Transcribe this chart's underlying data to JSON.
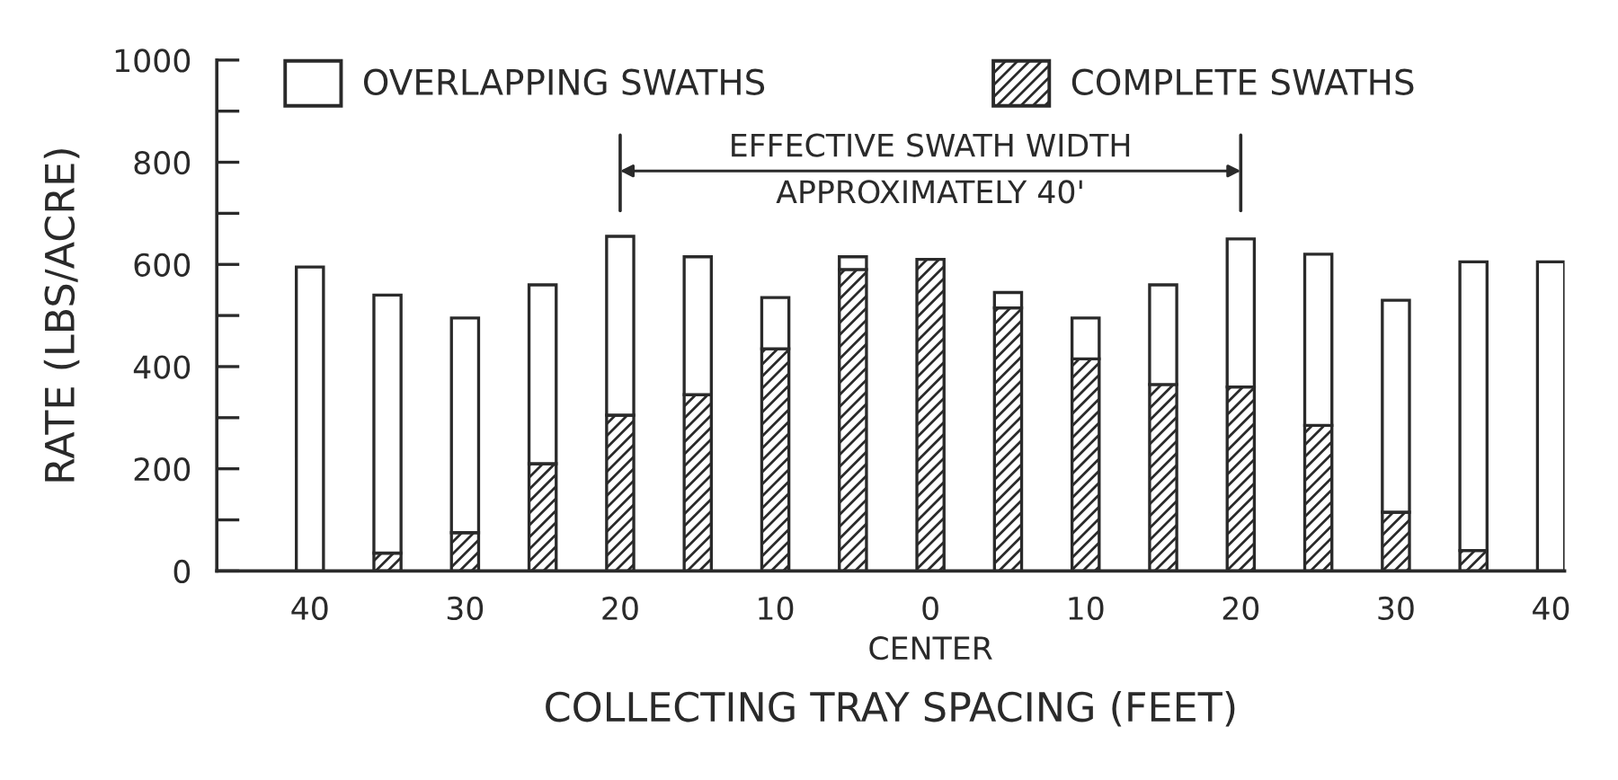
{
  "chart_data": {
    "type": "bar",
    "stacked": true,
    "legend": "top",
    "grid": false,
    "xlabel": "COLLECTING TRAY SPACING (FEET)",
    "ylabel": "RATE (LBS/ACRE)",
    "categories": [
      "40",
      null,
      "30",
      null,
      "20",
      null,
      "10",
      null,
      "0",
      null,
      "10",
      null,
      "20",
      null,
      "30",
      null,
      "40"
    ],
    "series": [
      {
        "name": "COMPLETE SWATHS",
        "color": "#2a2a2a",
        "values": [
          0,
          35,
          75,
          210,
          305,
          345,
          435,
          590,
          610,
          515,
          415,
          365,
          360,
          285,
          115,
          40,
          0
        ]
      },
      {
        "name": "OVERLAPPING SWATHS",
        "color": "#ffffff",
        "values": [
          595,
          505,
          420,
          350,
          350,
          270,
          100,
          25,
          0,
          30,
          80,
          195,
          290,
          335,
          415,
          565,
          605
        ]
      }
    ],
    "ylim": [
      0,
      1000
    ],
    "yticks": [
      0,
      {
        "value": 100,
        "label": null
      },
      200,
      {
        "value": 300,
        "label": null
      },
      400,
      {
        "value": 500,
        "label": null
      },
      600,
      {
        "value": 700,
        "label": null
      },
      800,
      {
        "value": 900,
        "label": null
      },
      1000
    ],
    "annotations": [
      "EFFECTIVE SWATH WIDTH",
      "APPROXIMATELY 40'",
      "CENTER"
    ]
  }
}
